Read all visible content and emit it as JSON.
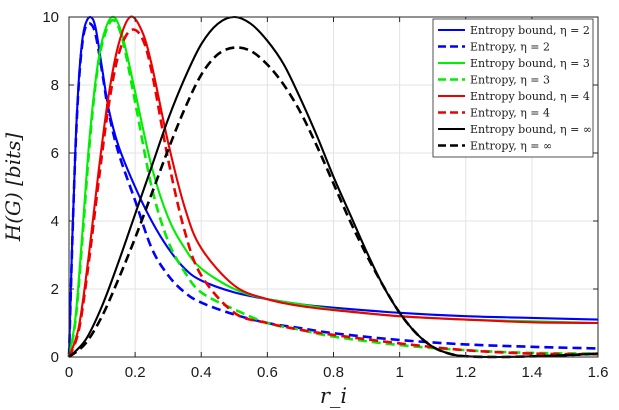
{
  "chart_data": {
    "type": "line",
    "xlabel": "r_i",
    "ylabel": "H(G) [bits]",
    "xlim": [
      0,
      1.6
    ],
    "ylim": [
      0,
      10
    ],
    "grid": true,
    "legend_position": "top-right",
    "x_ticks": [
      "0",
      "0.2",
      "0.4",
      "0.6",
      "0.8",
      "1",
      "1.2",
      "1.4",
      "1.6"
    ],
    "y_ticks": [
      "0",
      "2",
      "4",
      "6",
      "8",
      "10"
    ],
    "series": [
      {
        "name": "Entropy bound, η = 2",
        "color": "#0000ff",
        "style": "solid",
        "x": [
          0,
          0.01,
          0.02,
          0.03,
          0.04,
          0.05,
          0.065,
          0.08,
          0.1,
          0.12,
          0.15,
          0.2,
          0.25,
          0.3,
          0.35,
          0.4,
          0.5,
          0.6,
          0.7,
          0.8,
          1.0,
          1.2,
          1.4,
          1.6
        ],
        "y": [
          0,
          3.5,
          6.3,
          8.2,
          9.3,
          9.8,
          10.0,
          9.7,
          8.5,
          7.3,
          6.2,
          5.0,
          4.0,
          3.2,
          2.6,
          2.25,
          1.9,
          1.7,
          1.55,
          1.45,
          1.3,
          1.2,
          1.15,
          1.1
        ]
      },
      {
        "name": "Entropy, η = 2",
        "color": "#0000ff",
        "style": "dashed",
        "x": [
          0,
          0.01,
          0.02,
          0.03,
          0.04,
          0.05,
          0.065,
          0.08,
          0.1,
          0.12,
          0.15,
          0.2,
          0.25,
          0.3,
          0.35,
          0.4,
          0.5,
          0.6,
          0.7,
          0.8,
          1.0,
          1.2,
          1.4,
          1.6
        ],
        "y": [
          0,
          3.4,
          6.2,
          8.1,
          9.2,
          9.7,
          9.8,
          9.5,
          8.4,
          7.2,
          6.0,
          4.6,
          3.2,
          2.4,
          1.9,
          1.6,
          1.25,
          1.0,
          0.85,
          0.7,
          0.5,
          0.37,
          0.3,
          0.25
        ]
      },
      {
        "name": "Entropy bound, η = 3",
        "color": "#00ee00",
        "style": "solid",
        "x": [
          0,
          0.02,
          0.04,
          0.06,
          0.08,
          0.1,
          0.13,
          0.16,
          0.2,
          0.25,
          0.3,
          0.35,
          0.4,
          0.5,
          0.6,
          0.7,
          0.8,
          1.0,
          1.2,
          1.4,
          1.6
        ],
        "y": [
          0,
          1.2,
          3.6,
          6.2,
          8.1,
          9.3,
          10.0,
          9.5,
          7.8,
          5.6,
          4.1,
          3.2,
          2.6,
          2.0,
          1.7,
          1.55,
          1.4,
          1.2,
          1.1,
          1.05,
          1.0
        ]
      },
      {
        "name": "Entropy, η = 3",
        "color": "#00ee00",
        "style": "dashed",
        "x": [
          0,
          0.02,
          0.04,
          0.06,
          0.08,
          0.1,
          0.13,
          0.16,
          0.2,
          0.25,
          0.3,
          0.35,
          0.4,
          0.5,
          0.6,
          0.7,
          0.8,
          1.0,
          1.2,
          1.4,
          1.6
        ],
        "y": [
          0,
          1.1,
          3.4,
          6.0,
          8.0,
          9.2,
          9.9,
          9.4,
          7.5,
          5.0,
          3.4,
          2.5,
          1.9,
          1.4,
          1.0,
          0.8,
          0.6,
          0.35,
          0.2,
          0.12,
          0.1
        ]
      },
      {
        "name": "Entropy bound, η = 4",
        "color": "#ee0000",
        "style": "solid",
        "x": [
          0,
          0.03,
          0.06,
          0.09,
          0.12,
          0.15,
          0.185,
          0.22,
          0.25,
          0.3,
          0.35,
          0.4,
          0.5,
          0.6,
          0.7,
          0.8,
          1.0,
          1.2,
          1.4,
          1.6
        ],
        "y": [
          0,
          0.9,
          3.0,
          5.5,
          7.7,
          9.2,
          10.0,
          9.6,
          8.6,
          6.3,
          4.4,
          3.2,
          2.1,
          1.7,
          1.5,
          1.38,
          1.2,
          1.1,
          1.02,
          1.0
        ]
      },
      {
        "name": "Entropy, η = 4",
        "color": "#ee0000",
        "style": "dashed",
        "x": [
          0,
          0.03,
          0.06,
          0.09,
          0.12,
          0.15,
          0.185,
          0.22,
          0.25,
          0.3,
          0.35,
          0.4,
          0.5,
          0.6,
          0.7,
          0.8,
          1.0,
          1.2,
          1.4,
          1.6
        ],
        "y": [
          0,
          0.8,
          2.8,
          5.2,
          7.4,
          8.9,
          9.6,
          9.4,
          8.4,
          5.8,
          3.7,
          2.4,
          1.3,
          1.0,
          0.8,
          0.65,
          0.4,
          0.2,
          0.1,
          0.08
        ]
      },
      {
        "name": "Entropy bound, η = ∞",
        "color": "#000000",
        "style": "solid",
        "x": [
          0,
          0.05,
          0.1,
          0.15,
          0.2,
          0.25,
          0.3,
          0.35,
          0.4,
          0.45,
          0.5,
          0.55,
          0.6,
          0.65,
          0.7,
          0.75,
          0.8,
          0.85,
          0.9,
          0.95,
          1.0,
          1.05,
          1.1,
          1.15,
          1.2,
          1.3,
          1.4,
          1.5,
          1.6
        ],
        "y": [
          0,
          0.5,
          1.5,
          2.8,
          4.2,
          5.6,
          7.0,
          8.2,
          9.2,
          9.8,
          10.0,
          9.8,
          9.3,
          8.6,
          7.6,
          6.5,
          5.3,
          4.2,
          3.1,
          2.1,
          1.3,
          0.7,
          0.3,
          0.1,
          0.02,
          0.0,
          0.02,
          0.05,
          0.1
        ]
      },
      {
        "name": "Entropy, η = ∞",
        "color": "#000000",
        "style": "dashed",
        "x": [
          0,
          0.05,
          0.1,
          0.15,
          0.2,
          0.25,
          0.3,
          0.35,
          0.4,
          0.45,
          0.5,
          0.55,
          0.6,
          0.65,
          0.7,
          0.75,
          0.8,
          0.85,
          0.9,
          0.95,
          1.0,
          1.05,
          1.1,
          1.15,
          1.2,
          1.3,
          1.4,
          1.5,
          1.6
        ],
        "y": [
          0,
          0.4,
          1.2,
          2.3,
          3.5,
          4.8,
          6.1,
          7.3,
          8.3,
          8.9,
          9.1,
          9.0,
          8.6,
          8.0,
          7.2,
          6.2,
          5.1,
          4.0,
          3.0,
          2.1,
          1.3,
          0.7,
          0.3,
          0.1,
          0.02,
          0.0,
          0.02,
          0.05,
          0.1
        ]
      }
    ]
  }
}
